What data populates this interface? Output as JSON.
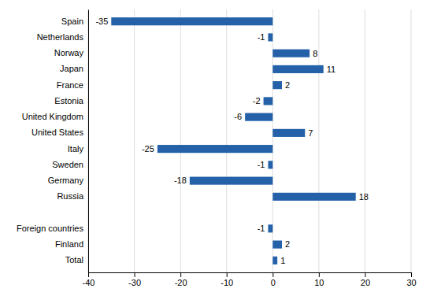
{
  "chart_data": {
    "type": "bar",
    "orientation": "horizontal",
    "categories": [
      "Total",
      "Finland",
      "Foreign countries",
      null,
      "Russia",
      "Germany",
      "Sweden",
      "Italy",
      "United States",
      "United Kingdom",
      "Estonia",
      "France",
      "Japan",
      "Norway",
      "Netherlands",
      "Spain"
    ],
    "values": [
      1,
      2,
      -1,
      null,
      18,
      -18,
      -1,
      -25,
      7,
      -6,
      -2,
      2,
      11,
      8,
      -1,
      -35
    ],
    "color": "#2461a9",
    "xlim": [
      -40,
      30
    ],
    "xticks": [
      -40,
      -30,
      -20,
      -10,
      0,
      10,
      20,
      30
    ],
    "grid": true,
    "data_labels": true
  }
}
